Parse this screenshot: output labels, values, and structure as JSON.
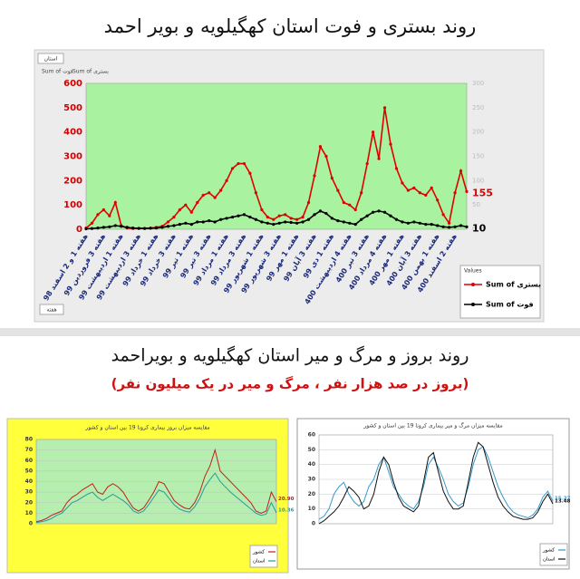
{
  "chart_data": [
    {
      "type": "line",
      "title": "روند بستری و فوت استان کهگیلویه و بویر احمد",
      "filter_label": "استان",
      "axis_field": "هفته",
      "legend_title": "Values",
      "grid": false,
      "markers": true,
      "plot_color": "#a9f2a0",
      "categories": [
        "هفته 1 و 2 اسفند 98",
        null,
        null,
        "هفته 3 فروردین 99",
        null,
        null,
        "هفته 1 اردیبهشت 99",
        null,
        null,
        "هفته 3 اردیبهشت 99",
        null,
        null,
        "هفته 1 خرداد 99",
        null,
        null,
        "هفته 3 خرداد 99",
        null,
        null,
        "هفته 1 تیر 99",
        null,
        null,
        "هفته 3 تیر 99",
        null,
        null,
        "هفته 1 مرداد 99",
        null,
        null,
        "هفته 3 مرداد 99",
        null,
        null,
        "هفته 1 شهریور 99",
        null,
        null,
        "هفته 3 شهریور 99",
        null,
        null,
        "هفته 1 مهر 99",
        null,
        null,
        "هفته 3 آبان 99",
        null,
        null,
        "هفته 1 دی 99",
        null,
        null,
        "هفته 4 اردیبهشت 400",
        null,
        null,
        "هفته 3 تیر 400",
        null,
        null,
        "هفته 4 مرداد 400",
        null,
        null,
        "هفته 1 مهر 400",
        null,
        null,
        "هفته 3 آبان 400",
        null,
        null,
        "هفته 1 بهمن 400",
        null,
        null,
        "هفته 2 اسفند 400",
        null,
        null
      ],
      "ylim": [
        0,
        600
      ],
      "yticks": [
        0,
        100,
        200,
        300,
        400,
        500,
        600
      ],
      "y2lim": [
        0,
        300
      ],
      "y2ticks": [
        0,
        50,
        100,
        150,
        200,
        250,
        300
      ],
      "series": [
        {
          "name": "Sum of بستری",
          "color": "#e00000",
          "values": [
            5,
            25,
            60,
            80,
            55,
            110,
            15,
            5,
            3,
            3,
            4,
            5,
            8,
            12,
            30,
            50,
            80,
            100,
            70,
            110,
            140,
            150,
            130,
            160,
            200,
            250,
            270,
            270,
            230,
            150,
            80,
            50,
            40,
            55,
            60,
            45,
            40,
            50,
            110,
            220,
            340,
            300,
            210,
            160,
            110,
            100,
            80,
            150,
            270,
            400,
            290,
            500,
            350,
            250,
            190,
            160,
            170,
            150,
            140,
            170,
            120,
            60,
            25,
            150,
            240,
            155
          ]
        },
        {
          "name": "Sum of فوت",
          "color": "#000000",
          "values": [
            2,
            3,
            5,
            8,
            10,
            15,
            12,
            8,
            5,
            4,
            3,
            4,
            5,
            8,
            12,
            15,
            20,
            25,
            20,
            30,
            30,
            35,
            30,
            40,
            45,
            50,
            55,
            60,
            50,
            40,
            30,
            25,
            20,
            25,
            30,
            28,
            25,
            30,
            40,
            60,
            75,
            65,
            45,
            35,
            30,
            25,
            20,
            40,
            55,
            70,
            75,
            70,
            55,
            40,
            30,
            25,
            30,
            25,
            20,
            20,
            15,
            10,
            8,
            10,
            15,
            10
          ]
        }
      ]
    },
    {
      "type": "line",
      "title": "روند بروز و مرگ و میر استان کهگیلویه و بویراحمد",
      "subtitle": "(بروز در صد هزار نفر ، مرگ و میر در یک میلیون نفر)",
      "chart_title": "مقایسه میزان بروز بیماری کرونا 19 بین استان و کشور",
      "grid": true,
      "markers": false,
      "plot_color": "#b6eeb0",
      "ylim": [
        0,
        80
      ],
      "yticks": [
        0,
        10,
        20,
        30,
        40,
        50,
        60,
        70,
        80
      ],
      "series": [
        {
          "name": "کشور",
          "color": "#c0201a",
          "end_label": "20.90",
          "values": [
            2,
            3,
            5,
            8,
            10,
            12,
            20,
            25,
            28,
            32,
            35,
            38,
            30,
            28,
            35,
            38,
            35,
            30,
            22,
            15,
            12,
            15,
            22,
            30,
            40,
            38,
            30,
            22,
            18,
            15,
            14,
            20,
            30,
            45,
            55,
            70,
            50,
            45,
            40,
            35,
            30,
            25,
            20,
            12,
            10,
            12,
            30,
            20.9
          ]
        },
        {
          "name": "استان",
          "color": "#2a9a9a",
          "end_label": "10.36",
          "values": [
            1,
            2,
            3,
            5,
            8,
            10,
            15,
            20,
            22,
            25,
            28,
            30,
            25,
            22,
            25,
            28,
            25,
            22,
            18,
            12,
            10,
            12,
            18,
            25,
            32,
            30,
            24,
            18,
            14,
            12,
            11,
            16,
            24,
            35,
            42,
            48,
            40,
            35,
            30,
            26,
            22,
            18,
            14,
            10,
            8,
            9,
            20,
            10.36
          ]
        }
      ]
    },
    {
      "type": "line",
      "chart_title": "مقایسه میزان مرگ و میر بیماری کرونا 19 بین استان و کشور",
      "grid": true,
      "markers": false,
      "plot_color": "#ffffff",
      "ylim": [
        0,
        60
      ],
      "yticks": [
        0,
        10,
        20,
        30,
        40,
        50,
        60
      ],
      "series": [
        {
          "name": "کشور",
          "color": "#3399cc",
          "end_label": "15.27",
          "values": [
            3,
            5,
            10,
            20,
            25,
            28,
            20,
            15,
            12,
            15,
            25,
            30,
            40,
            45,
            35,
            25,
            20,
            15,
            12,
            10,
            15,
            25,
            40,
            45,
            38,
            30,
            20,
            15,
            12,
            14,
            25,
            40,
            50,
            52,
            45,
            35,
            25,
            18,
            12,
            8,
            6,
            5,
            4,
            6,
            10,
            18,
            22,
            15.27
          ]
        },
        {
          "name": "استان",
          "color": "#111111",
          "end_label": "13.48",
          "values": [
            0,
            2,
            5,
            8,
            12,
            18,
            25,
            22,
            18,
            10,
            12,
            20,
            35,
            45,
            40,
            28,
            18,
            12,
            10,
            8,
            12,
            28,
            45,
            48,
            35,
            22,
            15,
            10,
            10,
            12,
            28,
            45,
            55,
            52,
            40,
            28,
            18,
            12,
            8,
            5,
            4,
            3,
            3,
            4,
            8,
            15,
            20,
            13.48
          ]
        }
      ]
    }
  ]
}
